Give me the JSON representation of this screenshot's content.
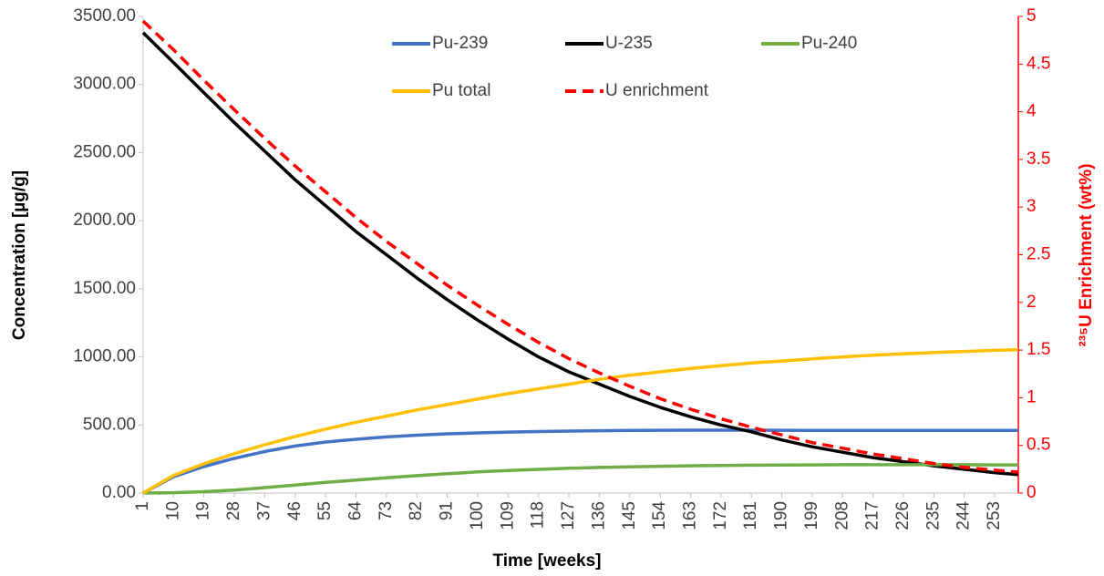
{
  "chart_data": {
    "type": "line",
    "x_label": "Time [weeks]",
    "y_label": "Concentration [µg/g]",
    "y2_label": "²³⁵U Enrichment (wt%)",
    "x": [
      1,
      10,
      19,
      28,
      37,
      46,
      55,
      64,
      73,
      82,
      91,
      100,
      109,
      118,
      127,
      136,
      145,
      154,
      163,
      172,
      181,
      190,
      199,
      208,
      217,
      226,
      235,
      244,
      253,
      260
    ],
    "xlim": [
      1,
      260
    ],
    "xticks": [
      1,
      10,
      19,
      28,
      37,
      46,
      55,
      64,
      73,
      82,
      91,
      100,
      109,
      118,
      127,
      136,
      145,
      154,
      163,
      172,
      181,
      190,
      199,
      208,
      217,
      226,
      235,
      244,
      253
    ],
    "ylim": [
      0,
      3500
    ],
    "yticks": [
      {
        "value": 0,
        "label": "0.00"
      },
      {
        "value": 500,
        "label": "500.00"
      },
      {
        "value": 1000,
        "label": "1000.00"
      },
      {
        "value": 1500,
        "label": "1500.00"
      },
      {
        "value": 2000,
        "label": "2000.00"
      },
      {
        "value": 2500,
        "label": "2500.00"
      },
      {
        "value": 3000,
        "label": "3000.00"
      },
      {
        "value": 3500,
        "label": "3500.00"
      }
    ],
    "y2lim": [
      0,
      5
    ],
    "y2ticks": [
      0,
      0.5,
      1,
      1.5,
      2,
      2.5,
      3,
      3.5,
      4,
      4.5,
      5
    ],
    "y2color": "#ff0000",
    "series": [
      {
        "name": "Pu-239",
        "color": "#4472c4",
        "values": [
          0,
          120,
          195,
          255,
          305,
          345,
          375,
          395,
          412,
          425,
          435,
          442,
          448,
          452,
          455,
          458,
          460,
          461,
          462,
          462,
          462,
          461,
          460,
          460,
          460,
          460,
          460,
          460,
          460,
          460
        ]
      },
      {
        "name": "U-235",
        "color": "#000000",
        "values": [
          3380,
          3160,
          2940,
          2720,
          2510,
          2300,
          2110,
          1920,
          1750,
          1580,
          1420,
          1270,
          1130,
          1000,
          890,
          800,
          710,
          630,
          560,
          500,
          450,
          390,
          340,
          300,
          260,
          230,
          200,
          175,
          150,
          135
        ]
      },
      {
        "name": "Pu-240",
        "color": "#70ad47",
        "values": [
          0,
          3,
          10,
          22,
          40,
          58,
          78,
          95,
          112,
          128,
          142,
          155,
          165,
          174,
          182,
          188,
          193,
          197,
          200,
          203,
          205,
          206,
          207,
          208,
          208,
          208,
          208,
          208,
          207,
          207
        ]
      },
      {
        "name": "Pu total",
        "color": "#ffc000",
        "values": [
          0,
          130,
          215,
          290,
          355,
          415,
          470,
          520,
          565,
          610,
          650,
          690,
          730,
          765,
          800,
          835,
          865,
          890,
          915,
          935,
          955,
          970,
          985,
          1000,
          1012,
          1022,
          1032,
          1040,
          1048,
          1052
        ]
      },
      {
        "name": "U enrichment",
        "color": "#ff0000",
        "dashed": true,
        "axis": "y2",
        "values": [
          4.95,
          4.65,
          4.33,
          4.02,
          3.72,
          3.43,
          3.16,
          2.89,
          2.64,
          2.41,
          2.18,
          1.97,
          1.77,
          1.58,
          1.41,
          1.26,
          1.12,
          0.99,
          0.88,
          0.78,
          0.69,
          0.61,
          0.53,
          0.47,
          0.41,
          0.36,
          0.31,
          0.27,
          0.24,
          0.22
        ]
      }
    ]
  }
}
